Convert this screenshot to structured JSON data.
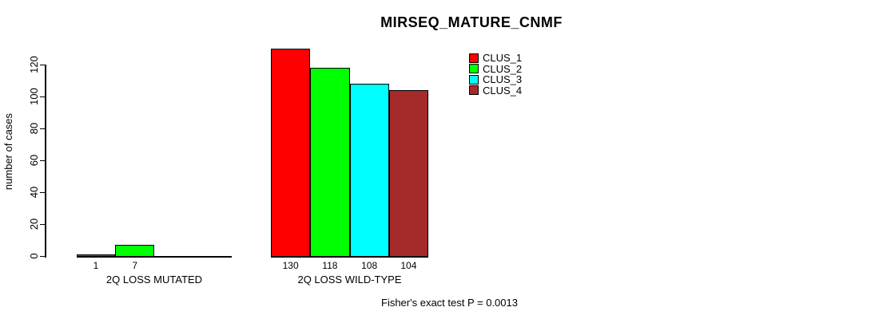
{
  "chart_data": {
    "type": "bar",
    "title": "MIRSEQ_MATURE_CNMF",
    "ylabel": "number of cases",
    "ylim": [
      0,
      130
    ],
    "yticks": [
      0,
      20,
      40,
      60,
      80,
      100,
      120
    ],
    "grid": false,
    "categories": [
      "2Q LOSS MUTATED",
      "2Q LOSS WILD-TYPE"
    ],
    "series": [
      {
        "name": "CLUS_1",
        "color": "#FF0000",
        "values": [
          1,
          130
        ]
      },
      {
        "name": "CLUS_2",
        "color": "#00FF00",
        "values": [
          7,
          118
        ]
      },
      {
        "name": "CLUS_3",
        "color": "#00FFFF",
        "values": [
          0,
          108
        ]
      },
      {
        "name": "CLUS_4",
        "color": "#A52A2A",
        "values": [
          0,
          104
        ]
      }
    ],
    "bar_labels": [
      [
        "1",
        "7",
        "",
        ""
      ],
      [
        "130",
        "118",
        "108",
        "104"
      ]
    ],
    "legend": {
      "position": "top-right",
      "entries": [
        "CLUS_1",
        "CLUS_2",
        "CLUS_3",
        "CLUS_4"
      ]
    },
    "annotation": "Fisher's exact test P = 0.0013"
  }
}
